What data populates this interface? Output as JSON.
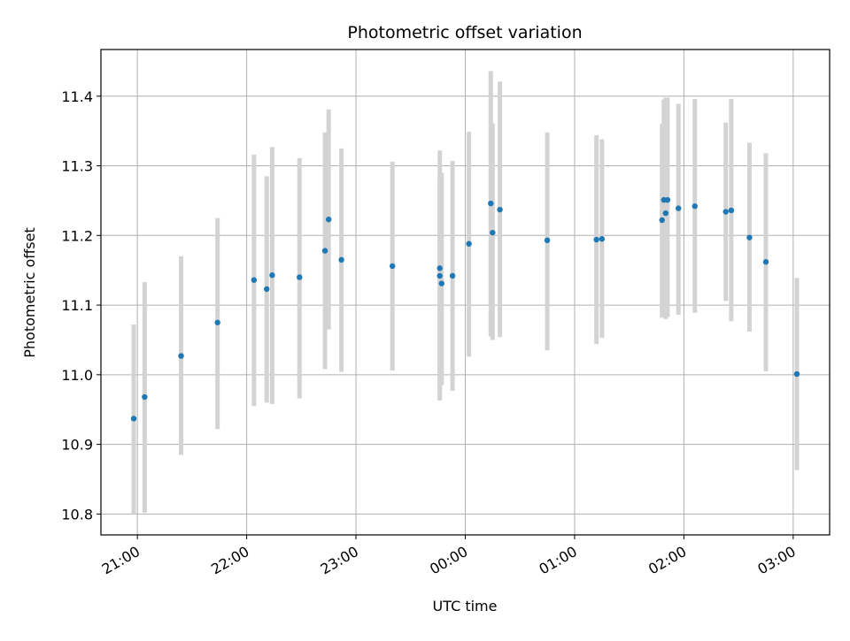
{
  "chart_data": {
    "type": "scatter",
    "title": "Photometric offset variation",
    "xlabel": "UTC time",
    "ylabel": "Photometric offset",
    "x_unit": "UTC time (HH:MM), night crossing midnight",
    "x_ticks": [
      "21:00",
      "22:00",
      "23:00",
      "00:00",
      "01:00",
      "02:00",
      "03:00"
    ],
    "y_ticks": [
      "10.8",
      "10.9",
      "11.0",
      "11.1",
      "11.2",
      "11.3",
      "11.4"
    ],
    "xlim": [
      "20:40",
      "03:20"
    ],
    "ylim": [
      10.77,
      11.467
    ],
    "grid": true,
    "colors": {
      "points": "#1f77b4",
      "error_bars": "#d3d3d3",
      "grid": "#b0b0b0",
      "axes": "#000000"
    },
    "series": [
      {
        "points": [
          {
            "x": "20:58",
            "y": 10.937,
            "y_lo": 10.8,
            "y_hi": 11.072
          },
          {
            "x": "21:04",
            "y": 10.968,
            "y_lo": 10.802,
            "y_hi": 11.133
          },
          {
            "x": "21:24",
            "y": 11.027,
            "y_lo": 10.885,
            "y_hi": 11.17
          },
          {
            "x": "21:44",
            "y": 11.075,
            "y_lo": 10.922,
            "y_hi": 11.225
          },
          {
            "x": "22:04",
            "y": 11.136,
            "y_lo": 10.955,
            "y_hi": 11.316
          },
          {
            "x": "22:11",
            "y": 11.123,
            "y_lo": 10.96,
            "y_hi": 11.285
          },
          {
            "x": "22:14",
            "y": 11.143,
            "y_lo": 10.958,
            "y_hi": 11.327
          },
          {
            "x": "22:29",
            "y": 11.14,
            "y_lo": 10.966,
            "y_hi": 11.311
          },
          {
            "x": "22:43",
            "y": 11.178,
            "y_lo": 11.008,
            "y_hi": 11.348
          },
          {
            "x": "22:45",
            "y": 11.223,
            "y_lo": 11.065,
            "y_hi": 11.381
          },
          {
            "x": "22:52",
            "y": 11.165,
            "y_lo": 11.004,
            "y_hi": 11.325
          },
          {
            "x": "23:20",
            "y": 11.156,
            "y_lo": 11.006,
            "y_hi": 11.306
          },
          {
            "x": "23:46",
            "y": 11.153,
            "y_lo": 10.963,
            "y_hi": 11.322
          },
          {
            "x": "23:46",
            "y": 11.142,
            "y_lo": 10.975,
            "y_hi": 11.28
          },
          {
            "x": "23:47",
            "y": 11.131,
            "y_lo": 10.985,
            "y_hi": 11.29
          },
          {
            "x": "23:53",
            "y": 11.142,
            "y_lo": 10.977,
            "y_hi": 11.307
          },
          {
            "x": "00:02",
            "y": 11.188,
            "y_lo": 11.026,
            "y_hi": 11.349
          },
          {
            "x": "00:14",
            "y": 11.246,
            "y_lo": 11.055,
            "y_hi": 11.436
          },
          {
            "x": "00:15",
            "y": 11.204,
            "y_lo": 11.05,
            "y_hi": 11.361
          },
          {
            "x": "00:19",
            "y": 11.237,
            "y_lo": 11.054,
            "y_hi": 11.421
          },
          {
            "x": "00:45",
            "y": 11.193,
            "y_lo": 11.035,
            "y_hi": 11.348
          },
          {
            "x": "01:12",
            "y": 11.194,
            "y_lo": 11.044,
            "y_hi": 11.344
          },
          {
            "x": "01:15",
            "y": 11.195,
            "y_lo": 11.053,
            "y_hi": 11.338
          },
          {
            "x": "01:48",
            "y": 11.222,
            "y_lo": 11.082,
            "y_hi": 11.36
          },
          {
            "x": "01:49",
            "y": 11.251,
            "y_lo": 11.09,
            "y_hi": 11.395
          },
          {
            "x": "01:50",
            "y": 11.232,
            "y_lo": 11.08,
            "y_hi": 11.398
          },
          {
            "x": "01:51",
            "y": 11.251,
            "y_lo": 11.083,
            "y_hi": 11.398
          },
          {
            "x": "01:57",
            "y": 11.239,
            "y_lo": 11.086,
            "y_hi": 11.389
          },
          {
            "x": "02:06",
            "y": 11.242,
            "y_lo": 11.089,
            "y_hi": 11.396
          },
          {
            "x": "02:23",
            "y": 11.234,
            "y_lo": 11.106,
            "y_hi": 11.362
          },
          {
            "x": "02:26",
            "y": 11.236,
            "y_lo": 11.077,
            "y_hi": 11.396
          },
          {
            "x": "02:36",
            "y": 11.197,
            "y_lo": 11.062,
            "y_hi": 11.333
          },
          {
            "x": "02:45",
            "y": 11.162,
            "y_lo": 11.005,
            "y_hi": 11.318
          },
          {
            "x": "03:02",
            "y": 11.001,
            "y_lo": 10.863,
            "y_hi": 11.139
          }
        ]
      }
    ]
  }
}
